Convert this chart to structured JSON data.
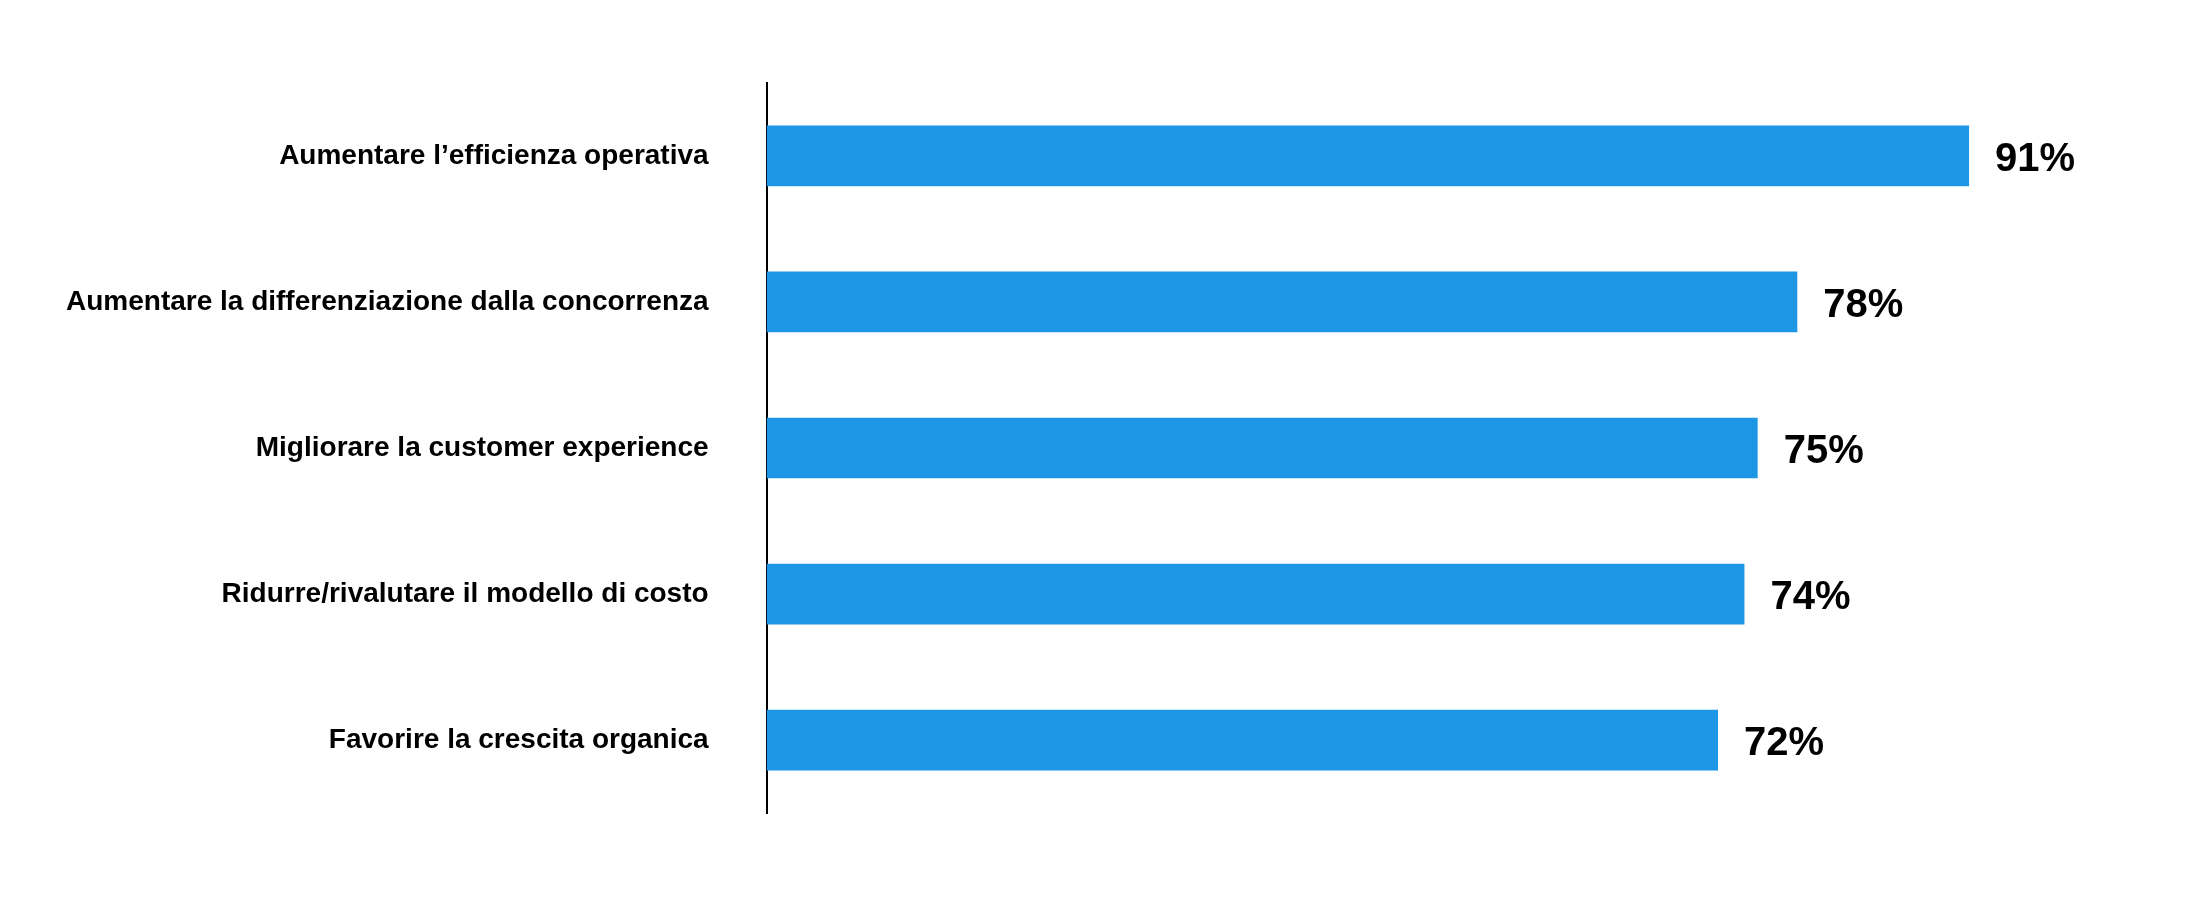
{
  "chart_data": {
    "type": "bar",
    "orientation": "horizontal",
    "categories": [
      "Aumentare l’efficienza operativa",
      "Aumentare la differenziazione dalla concorrenza",
      "Migliorare la customer experience",
      "Ridurre/rivalutare il modello di costo",
      "Favorire la crescita organica"
    ],
    "values": [
      91,
      78,
      75,
      74,
      72
    ],
    "value_labels": [
      "91%",
      "78%",
      "75%",
      "74%",
      "72%"
    ],
    "color": "#1e96e6",
    "tick_labels": "y",
    "grid": false,
    "legend": false
  }
}
